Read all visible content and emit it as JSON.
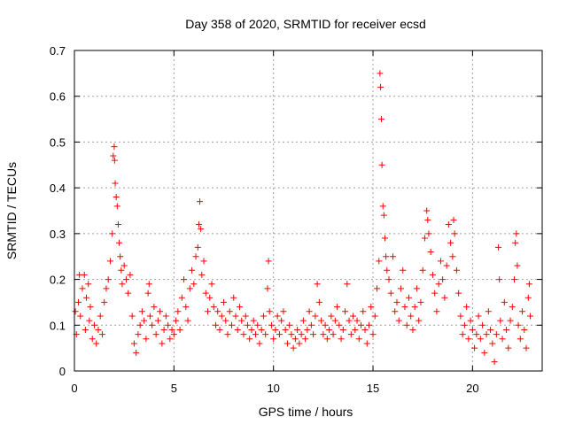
{
  "chart_data": {
    "type": "scatter",
    "title": "Day 358 of 2020, SRMTID for receiver ecsd",
    "xlabel": "GPS time / hours",
    "ylabel": "SRMTID / TECUs",
    "xlim": [
      0,
      23.5
    ],
    "ylim": [
      0,
      0.7
    ],
    "xticks": [
      0,
      5,
      10,
      15,
      20
    ],
    "xtick_labels": [
      "0",
      "5",
      "10",
      "15",
      "20"
    ],
    "yticks": [
      0,
      0.1,
      0.2,
      0.3,
      0.4,
      0.5,
      0.6,
      0.7
    ],
    "ytick_labels": [
      "0",
      "0.1",
      "0.2",
      "0.3",
      "0.4",
      "0.5",
      "0.6",
      "0.7"
    ],
    "grid": true,
    "marker": "+",
    "series": [
      {
        "name": "SRMTID",
        "color": "#ff0000",
        "points": [
          [
            0.05,
            0.13
          ],
          [
            0.1,
            0.08
          ],
          [
            0.2,
            0.15
          ],
          [
            0.25,
            0.21
          ],
          [
            0.3,
            0.12
          ],
          [
            0.4,
            0.18
          ],
          [
            0.5,
            0.21
          ],
          [
            0.55,
            0.09
          ],
          [
            0.6,
            0.16
          ],
          [
            0.7,
            0.19
          ],
          [
            0.75,
            0.11
          ],
          [
            0.8,
            0.14
          ],
          [
            0.9,
            0.07
          ],
          [
            1.0,
            0.1
          ],
          [
            1.1,
            0.06
          ],
          [
            1.2,
            0.09
          ],
          [
            1.3,
            0.12
          ],
          [
            1.4,
            0.08
          ],
          [
            1.5,
            0.15
          ],
          [
            1.6,
            0.18
          ],
          [
            1.7,
            0.2
          ],
          [
            1.8,
            0.24
          ],
          [
            1.9,
            0.3
          ],
          [
            1.95,
            0.47
          ],
          [
            2.0,
            0.49
          ],
          [
            2.02,
            0.46
          ],
          [
            2.05,
            0.41
          ],
          [
            2.1,
            0.38
          ],
          [
            2.15,
            0.36
          ],
          [
            2.2,
            0.32
          ],
          [
            2.25,
            0.28
          ],
          [
            2.3,
            0.25
          ],
          [
            2.35,
            0.22
          ],
          [
            2.4,
            0.19
          ],
          [
            2.5,
            0.23
          ],
          [
            2.6,
            0.2
          ],
          [
            2.7,
            0.17
          ],
          [
            2.8,
            0.21
          ],
          [
            2.9,
            0.12
          ],
          [
            3.0,
            0.06
          ],
          [
            3.1,
            0.04
          ],
          [
            3.2,
            0.08
          ],
          [
            3.3,
            0.1
          ],
          [
            3.4,
            0.13
          ],
          [
            3.5,
            0.11
          ],
          [
            3.6,
            0.07
          ],
          [
            3.7,
            0.17
          ],
          [
            3.75,
            0.19
          ],
          [
            3.8,
            0.12
          ],
          [
            3.9,
            0.1
          ],
          [
            4.0,
            0.14
          ],
          [
            4.1,
            0.08
          ],
          [
            4.2,
            0.11
          ],
          [
            4.3,
            0.13
          ],
          [
            4.4,
            0.06
          ],
          [
            4.5,
            0.09
          ],
          [
            4.6,
            0.12
          ],
          [
            4.7,
            0.1
          ],
          [
            4.8,
            0.07
          ],
          [
            4.9,
            0.09
          ],
          [
            5.0,
            0.08
          ],
          [
            5.1,
            0.11
          ],
          [
            5.2,
            0.13
          ],
          [
            5.3,
            0.09
          ],
          [
            5.4,
            0.16
          ],
          [
            5.5,
            0.2
          ],
          [
            5.6,
            0.14
          ],
          [
            5.7,
            0.11
          ],
          [
            5.8,
            0.18
          ],
          [
            5.9,
            0.22
          ],
          [
            6.0,
            0.19
          ],
          [
            6.1,
            0.25
          ],
          [
            6.2,
            0.27
          ],
          [
            6.25,
            0.32
          ],
          [
            6.3,
            0.37
          ],
          [
            6.35,
            0.31
          ],
          [
            6.4,
            0.21
          ],
          [
            6.5,
            0.24
          ],
          [
            6.6,
            0.17
          ],
          [
            6.7,
            0.13
          ],
          [
            6.8,
            0.16
          ],
          [
            6.9,
            0.19
          ],
          [
            7.0,
            0.14
          ],
          [
            7.1,
            0.1
          ],
          [
            7.2,
            0.13
          ],
          [
            7.3,
            0.09
          ],
          [
            7.4,
            0.12
          ],
          [
            7.5,
            0.15
          ],
          [
            7.6,
            0.11
          ],
          [
            7.7,
            0.08
          ],
          [
            7.8,
            0.13
          ],
          [
            7.9,
            0.1
          ],
          [
            8.0,
            0.16
          ],
          [
            8.1,
            0.12
          ],
          [
            8.2,
            0.09
          ],
          [
            8.3,
            0.14
          ],
          [
            8.4,
            0.11
          ],
          [
            8.5,
            0.08
          ],
          [
            8.6,
            0.12
          ],
          [
            8.7,
            0.1
          ],
          [
            8.8,
            0.07
          ],
          [
            8.9,
            0.09
          ],
          [
            9.0,
            0.11
          ],
          [
            9.1,
            0.08
          ],
          [
            9.2,
            0.1
          ],
          [
            9.3,
            0.06
          ],
          [
            9.4,
            0.09
          ],
          [
            9.5,
            0.12
          ],
          [
            9.6,
            0.08
          ],
          [
            9.7,
            0.18
          ],
          [
            9.75,
            0.24
          ],
          [
            9.8,
            0.13
          ],
          [
            9.9,
            0.1
          ],
          [
            10.0,
            0.07
          ],
          [
            10.1,
            0.09
          ],
          [
            10.2,
            0.12
          ],
          [
            10.3,
            0.08
          ],
          [
            10.4,
            0.11
          ],
          [
            10.5,
            0.13
          ],
          [
            10.6,
            0.09
          ],
          [
            10.7,
            0.06
          ],
          [
            10.8,
            0.1
          ],
          [
            10.9,
            0.08
          ],
          [
            11.0,
            0.05
          ],
          [
            11.1,
            0.07
          ],
          [
            11.2,
            0.09
          ],
          [
            11.3,
            0.06
          ],
          [
            11.4,
            0.08
          ],
          [
            11.5,
            0.11
          ],
          [
            11.6,
            0.07
          ],
          [
            11.7,
            0.09
          ],
          [
            11.8,
            0.13
          ],
          [
            11.9,
            0.1
          ],
          [
            12.0,
            0.08
          ],
          [
            12.1,
            0.12
          ],
          [
            12.2,
            0.19
          ],
          [
            12.3,
            0.15
          ],
          [
            12.4,
            0.11
          ],
          [
            12.5,
            0.08
          ],
          [
            12.6,
            0.1
          ],
          [
            12.7,
            0.07
          ],
          [
            12.8,
            0.09
          ],
          [
            12.9,
            0.12
          ],
          [
            13.0,
            0.08
          ],
          [
            13.1,
            0.11
          ],
          [
            13.2,
            0.14
          ],
          [
            13.3,
            0.1
          ],
          [
            13.4,
            0.07
          ],
          [
            13.5,
            0.09
          ],
          [
            13.6,
            0.13
          ],
          [
            13.7,
            0.19
          ],
          [
            13.8,
            0.11
          ],
          [
            13.9,
            0.08
          ],
          [
            14.0,
            0.12
          ],
          [
            14.1,
            0.09
          ],
          [
            14.2,
            0.11
          ],
          [
            14.3,
            0.07
          ],
          [
            14.4,
            0.1
          ],
          [
            14.5,
            0.13
          ],
          [
            14.6,
            0.09
          ],
          [
            14.7,
            0.06
          ],
          [
            14.8,
            0.1
          ],
          [
            14.9,
            0.14
          ],
          [
            15.0,
            0.08
          ],
          [
            15.1,
            0.12
          ],
          [
            15.2,
            0.18
          ],
          [
            15.3,
            0.24
          ],
          [
            15.35,
            0.65
          ],
          [
            15.38,
            0.62
          ],
          [
            15.42,
            0.55
          ],
          [
            15.45,
            0.45
          ],
          [
            15.5,
            0.36
          ],
          [
            15.55,
            0.34
          ],
          [
            15.6,
            0.29
          ],
          [
            15.65,
            0.25
          ],
          [
            15.7,
            0.22
          ],
          [
            15.8,
            0.2
          ],
          [
            15.9,
            0.17
          ],
          [
            16.0,
            0.25
          ],
          [
            16.1,
            0.13
          ],
          [
            16.2,
            0.15
          ],
          [
            16.3,
            0.11
          ],
          [
            16.4,
            0.18
          ],
          [
            16.5,
            0.22
          ],
          [
            16.6,
            0.14
          ],
          [
            16.7,
            0.1
          ],
          [
            16.8,
            0.16
          ],
          [
            16.9,
            0.12
          ],
          [
            17.0,
            0.09
          ],
          [
            17.1,
            0.14
          ],
          [
            17.2,
            0.18
          ],
          [
            17.3,
            0.11
          ],
          [
            17.4,
            0.15
          ],
          [
            17.5,
            0.22
          ],
          [
            17.6,
            0.29
          ],
          [
            17.7,
            0.35
          ],
          [
            17.75,
            0.33
          ],
          [
            17.8,
            0.3
          ],
          [
            17.9,
            0.26
          ],
          [
            18.0,
            0.21
          ],
          [
            18.1,
            0.17
          ],
          [
            18.2,
            0.13
          ],
          [
            18.3,
            0.19
          ],
          [
            18.4,
            0.24
          ],
          [
            18.5,
            0.2
          ],
          [
            18.6,
            0.16
          ],
          [
            18.7,
            0.23
          ],
          [
            18.8,
            0.32
          ],
          [
            18.9,
            0.28
          ],
          [
            19.0,
            0.25
          ],
          [
            19.05,
            0.33
          ],
          [
            19.1,
            0.3
          ],
          [
            19.2,
            0.22
          ],
          [
            19.3,
            0.17
          ],
          [
            19.4,
            0.12
          ],
          [
            19.5,
            0.08
          ],
          [
            19.6,
            0.1
          ],
          [
            19.7,
            0.14
          ],
          [
            19.8,
            0.07
          ],
          [
            19.9,
            0.11
          ],
          [
            20.0,
            0.09
          ],
          [
            20.1,
            0.05
          ],
          [
            20.2,
            0.08
          ],
          [
            20.3,
            0.12
          ],
          [
            20.4,
            0.07
          ],
          [
            20.5,
            0.1
          ],
          [
            20.6,
            0.04
          ],
          [
            20.7,
            0.08
          ],
          [
            20.8,
            0.13
          ],
          [
            20.9,
            0.09
          ],
          [
            21.0,
            0.06
          ],
          [
            21.1,
            0.02
          ],
          [
            21.2,
            0.08
          ],
          [
            21.3,
            0.27
          ],
          [
            21.35,
            0.2
          ],
          [
            21.4,
            0.11
          ],
          [
            21.5,
            0.07
          ],
          [
            21.6,
            0.15
          ],
          [
            21.7,
            0.09
          ],
          [
            21.8,
            0.05
          ],
          [
            21.9,
            0.11
          ],
          [
            22.0,
            0.14
          ],
          [
            22.1,
            0.2
          ],
          [
            22.15,
            0.28
          ],
          [
            22.2,
            0.3
          ],
          [
            22.25,
            0.23
          ],
          [
            22.3,
            0.1
          ],
          [
            22.4,
            0.07
          ],
          [
            22.5,
            0.13
          ],
          [
            22.6,
            0.09
          ],
          [
            22.7,
            0.05
          ],
          [
            22.8,
            0.16
          ],
          [
            22.85,
            0.19
          ],
          [
            22.9,
            0.12
          ]
        ]
      }
    ]
  }
}
